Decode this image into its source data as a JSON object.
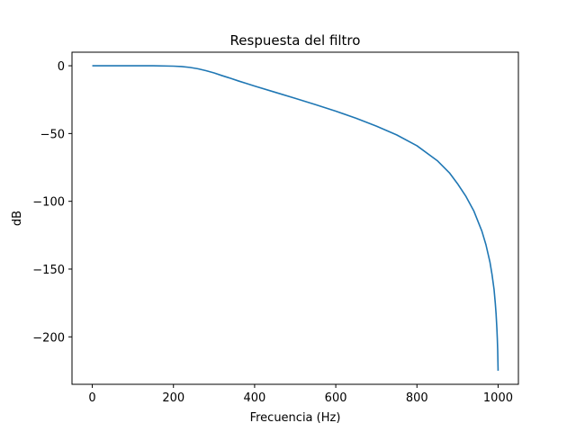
{
  "chart_data": {
    "type": "line",
    "title": "Respuesta del filtro",
    "xlabel": "Frecuencia (Hz)",
    "ylabel": "dB",
    "xlim": [
      -50,
      1050
    ],
    "ylim": [
      -235,
      10
    ],
    "xticks": [
      0,
      200,
      400,
      600,
      800,
      1000
    ],
    "xtick_labels": [
      "0",
      "200",
      "400",
      "600",
      "800",
      "1000"
    ],
    "yticks": [
      0,
      -50,
      -100,
      -150,
      -200
    ],
    "ytick_labels": [
      "0",
      "−50",
      "−100",
      "−150",
      "−200"
    ],
    "grid": false,
    "series": [
      {
        "color": "#1f77b4",
        "x": [
          0,
          50,
          100,
          150,
          200,
          220,
          240,
          260,
          280,
          300,
          320,
          340,
          360,
          380,
          400,
          450,
          500,
          550,
          600,
          650,
          700,
          750,
          800,
          850,
          880,
          900,
          920,
          940,
          960,
          970,
          980,
          985,
          990,
          993,
          995,
          997,
          998,
          999,
          1000
        ],
        "y": [
          0,
          0,
          0,
          0,
          -0.3,
          -0.6,
          -1.2,
          -2.2,
          -3.6,
          -5.3,
          -7.3,
          -9.2,
          -11.2,
          -13.1,
          -15.0,
          -19.5,
          -24.0,
          -28.7,
          -33.5,
          -38.7,
          -44.5,
          -51.0,
          -59.0,
          -70.0,
          -79.0,
          -87.0,
          -96.0,
          -107.0,
          -122.0,
          -132.0,
          -145.0,
          -154.0,
          -165.0,
          -175.0,
          -183.0,
          -194.0,
          -201.0,
          -210.0,
          -225.0
        ]
      }
    ]
  }
}
